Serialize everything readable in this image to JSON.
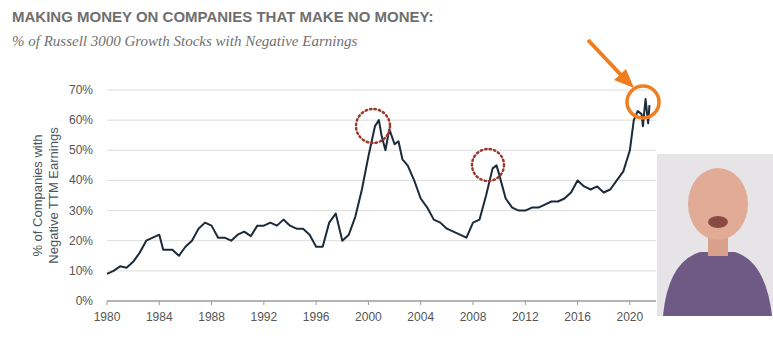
{
  "chart_data": {
    "type": "line",
    "title": "MAKING MONEY ON COMPANIES THAT MAKE NO MONEY:",
    "subtitle": "% of Russell 3000 Growth Stocks with Negative Earnings",
    "y_label": [
      "% of Companies with",
      "Negative TTM Earnings"
    ],
    "color": "#1c2b3a",
    "grid": true,
    "x": [
      1980,
      1980.5,
      1981,
      1981.5,
      1982,
      1982.5,
      1983,
      1983.5,
      1984,
      1984.3,
      1985,
      1985.5,
      1986,
      1986.5,
      1987,
      1987.5,
      1988,
      1988.5,
      1989,
      1989.5,
      1990,
      1990.5,
      1991,
      1991.5,
      1992,
      1992.5,
      1993,
      1993.5,
      1994,
      1994.5,
      1995,
      1995.5,
      1996,
      1996.5,
      1997,
      1997.5,
      1998,
      1998.5,
      1999,
      1999.5,
      2000,
      2000.5,
      2000.8,
      2001,
      2001.3,
      2001.6,
      2002,
      2002.3,
      2002.6,
      2003,
      2003.5,
      2004,
      2004.5,
      2005,
      2005.5,
      2006,
      2006.5,
      2007,
      2007.5,
      2008,
      2008.5,
      2009,
      2009.5,
      2009.8,
      2010,
      2010.5,
      2011,
      2011.5,
      2012,
      2012.5,
      2013,
      2013.5,
      2014,
      2014.5,
      2015,
      2015.5,
      2016,
      2016.5,
      2017,
      2017.5,
      2018,
      2018.5,
      2019,
      2019.5,
      2020,
      2020.3,
      2020.6,
      2020.9,
      2021,
      2021.2,
      2021.4,
      2021.5
    ],
    "values": [
      9,
      10,
      11.5,
      11,
      13,
      16,
      20,
      21,
      22,
      17,
      17,
      15,
      18,
      20,
      24,
      26,
      25,
      21,
      21,
      20,
      22,
      23,
      21.5,
      25,
      25,
      26,
      25,
      27,
      25,
      24,
      24,
      22,
      18,
      18,
      26,
      29,
      20,
      22,
      28,
      37,
      48,
      58,
      60,
      55,
      50,
      57,
      52,
      53,
      47,
      45,
      40,
      34,
      31,
      27,
      26,
      24,
      23,
      22,
      21,
      26,
      27,
      35,
      44,
      45,
      42,
      34,
      31,
      30,
      30,
      31,
      31,
      32,
      33,
      33,
      34,
      36,
      40,
      38,
      37,
      38,
      36,
      37,
      40,
      43,
      50,
      60,
      63,
      62,
      58,
      67,
      59,
      65
    ],
    "xlim": [
      1980,
      2022
    ],
    "xticks": [
      1980,
      1984,
      1988,
      1992,
      1996,
      2000,
      2004,
      2008,
      2012,
      2016,
      2020
    ],
    "ylim": [
      0,
      70
    ],
    "yticks": [
      {
        "value": 0,
        "label": "0%"
      },
      {
        "value": 10,
        "label": "10%"
      },
      {
        "value": 20,
        "label": "20%"
      },
      {
        "value": 30,
        "label": "30%"
      },
      {
        "value": 40,
        "label": "40%"
      },
      {
        "value": 50,
        "label": "50%"
      },
      {
        "value": 60,
        "label": "60%"
      },
      {
        "value": 70,
        "label": "70%"
      }
    ]
  }
}
